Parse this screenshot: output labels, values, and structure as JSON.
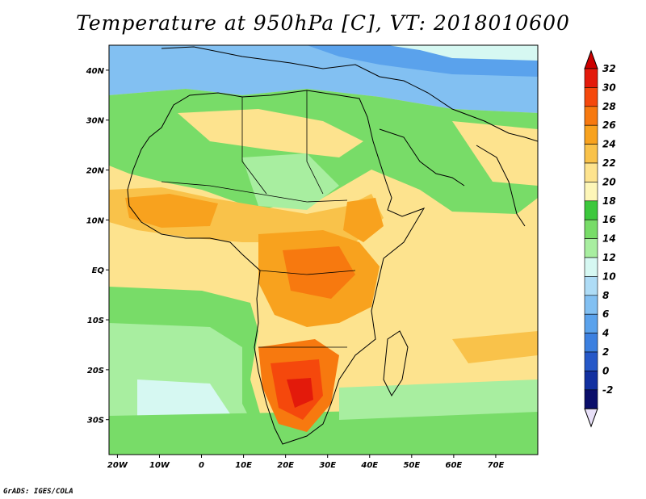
{
  "title": "Temperature at 950hPa [C], VT: 2018010600",
  "footer": "GrADS: IGES/COLA",
  "map": {
    "lat_labels": [
      "40N",
      "30N",
      "20N",
      "10N",
      "EQ",
      "10S",
      "20S",
      "30S"
    ],
    "lat_values": [
      40,
      30,
      20,
      10,
      0,
      -10,
      -20,
      -30
    ],
    "lon_labels": [
      "20W",
      "10W",
      "0",
      "10E",
      "20E",
      "30E",
      "40E",
      "50E",
      "60E",
      "70E"
    ],
    "lon_values": [
      -20,
      -10,
      0,
      10,
      20,
      30,
      40,
      50,
      60,
      70
    ],
    "lon_range": [
      -22,
      80
    ],
    "lat_range": [
      -37,
      45
    ]
  },
  "colorbar": {
    "labels": [
      "32",
      "30",
      "28",
      "26",
      "24",
      "22",
      "20",
      "18",
      "16",
      "14",
      "12",
      "10",
      "8",
      "6",
      "4",
      "2",
      "0",
      "-2"
    ],
    "colors": [
      "#e31a0b",
      "#f5480c",
      "#f7790f",
      "#f8a21e",
      "#f9c24a",
      "#fde38e",
      "#fdf6b8",
      "#3cc83c",
      "#78dc68",
      "#a8eea0",
      "#d6f8f2",
      "#aedcf6",
      "#82c0f2",
      "#5aa2ec",
      "#3c80e0",
      "#2658c8",
      "#1230a0",
      "#0a0e6a"
    ],
    "top_arrow_color": "#cc0000",
    "bottom_arrow_color": "#e8e0f8"
  }
}
